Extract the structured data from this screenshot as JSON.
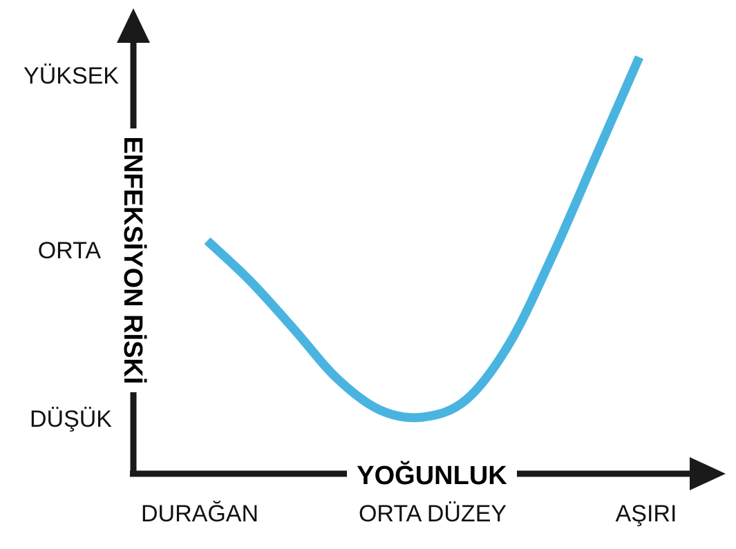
{
  "chart_data": {
    "type": "line",
    "xlabel": "YOĞUNLUK",
    "ylabel": "ENFEKSİYON RİSKİ",
    "x_ticks": [
      "DURAĞAN",
      "ORTA DÜZEY",
      "AŞIRI"
    ],
    "y_ticks": [
      "DÜŞÜK",
      "ORTA",
      "YÜKSEK"
    ],
    "xlim": [
      0,
      2
    ],
    "ylim": [
      0,
      2
    ],
    "series": [
      {
        "x": [
          0.0,
          0.2,
          0.4,
          0.6,
          0.8,
          1.0,
          1.2,
          1.4,
          1.6,
          1.8,
          2.0
        ],
        "values": [
          1.0,
          0.77,
          0.5,
          0.22,
          0.04,
          0.0,
          0.1,
          0.42,
          0.92,
          1.48,
          2.04
        ]
      }
    ],
    "colors": {
      "axis": "#1a1a1a",
      "line": "#4ab4e0"
    },
    "grid": false
  }
}
